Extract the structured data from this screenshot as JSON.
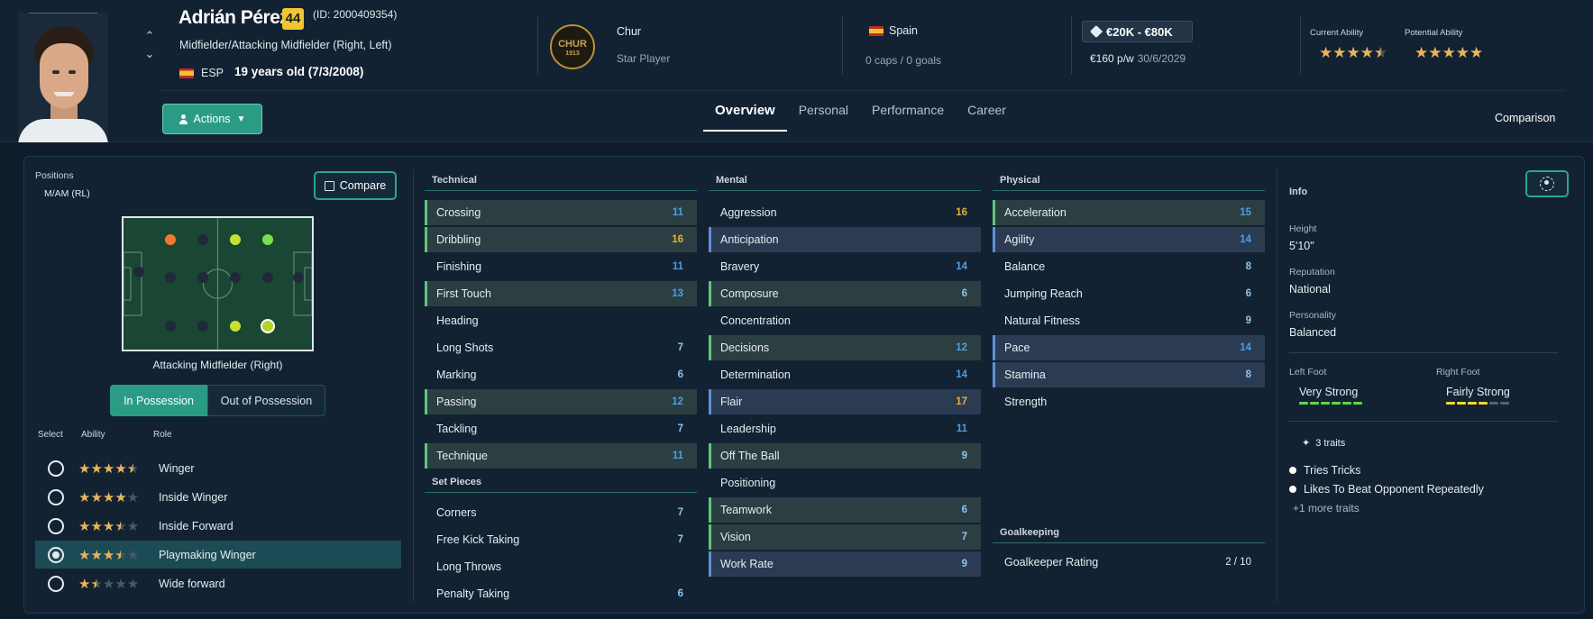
{
  "player": {
    "name": "Adrián Pérez",
    "ca_badge": "44",
    "id": "(ID: 2000409354)",
    "positions": "Midfielder/Attacking Midfielder (Right, Left)",
    "nationality_code": "ESP",
    "age": "19 years old (7/3/2008)"
  },
  "club": {
    "logo_text": "CHUR",
    "logo_year": "1913",
    "name": "Chur",
    "role": "Star Player"
  },
  "nation": {
    "name": "Spain",
    "caps": "0 caps / 0 goals"
  },
  "contract": {
    "value": "€20K - €80K",
    "wage": "€160 p/w",
    "expiry": "30/6/2029"
  },
  "ability": {
    "current_label": "Current Ability",
    "current_stars": 4.5,
    "potential_label": "Potential Ability",
    "potential_stars": 5
  },
  "actions_label": "Actions",
  "tabs": [
    {
      "label": "Overview",
      "active": true
    },
    {
      "label": "Personal",
      "active": false
    },
    {
      "label": "Performance",
      "active": false
    },
    {
      "label": "Career",
      "active": false
    }
  ],
  "comparison_label": "Comparison",
  "positions_panel": {
    "label": "Positions",
    "value": "M/AM (RL)",
    "compare_label": "Compare",
    "pitch_caption": "Attacking Midfielder (Right)",
    "in_possession": "In Possession",
    "out_of_possession": "Out of Possession",
    "head_select": "Select",
    "head_ability": "Ability",
    "head_role": "Role",
    "roles": [
      {
        "name": "Winger",
        "stars": 4.5,
        "selected": false
      },
      {
        "name": "Inside Winger",
        "stars": 4,
        "selected": false
      },
      {
        "name": "Inside Forward",
        "stars": 3.5,
        "selected": false
      },
      {
        "name": "Playmaking Winger",
        "stars": 3.5,
        "selected": true
      },
      {
        "name": "Wide forward",
        "stars": 1.5,
        "selected": false
      }
    ]
  },
  "technical": {
    "title": "Technical",
    "attrs": [
      {
        "name": "Crossing",
        "value": "11",
        "hl": "green",
        "color": "blue"
      },
      {
        "name": "Dribbling",
        "value": "16",
        "hl": "green",
        "color": "gold"
      },
      {
        "name": "Finishing",
        "value": "11",
        "hl": "",
        "color": "blue"
      },
      {
        "name": "First Touch",
        "value": "13",
        "hl": "green",
        "color": "blue"
      },
      {
        "name": "Heading",
        "value": "",
        "hl": "",
        "color": "blue"
      },
      {
        "name": "Long Shots",
        "value": "7",
        "hl": "",
        "color": "lblue"
      },
      {
        "name": "Marking",
        "value": "6",
        "hl": "",
        "color": "lblue"
      },
      {
        "name": "Passing",
        "value": "12",
        "hl": "green",
        "color": "blue"
      },
      {
        "name": "Tackling",
        "value": "7",
        "hl": "",
        "color": "lblue"
      },
      {
        "name": "Technique",
        "value": "11",
        "hl": "green",
        "color": "blue"
      }
    ]
  },
  "set_pieces": {
    "title": "Set Pieces",
    "attrs": [
      {
        "name": "Corners",
        "value": "7",
        "hl": "",
        "color": "lblue"
      },
      {
        "name": "Free Kick Taking",
        "value": "7",
        "hl": "",
        "color": "lblue"
      },
      {
        "name": "Long Throws",
        "value": "",
        "hl": "",
        "color": "lblue"
      },
      {
        "name": "Penalty Taking",
        "value": "6",
        "hl": "",
        "color": "lblue"
      }
    ]
  },
  "mental": {
    "title": "Mental",
    "attrs": [
      {
        "name": "Aggression",
        "value": "16",
        "hl": "",
        "color": "gold"
      },
      {
        "name": "Anticipation",
        "value": "",
        "hl": "blue",
        "color": "blue"
      },
      {
        "name": "Bravery",
        "value": "14",
        "hl": "",
        "color": "blue"
      },
      {
        "name": "Composure",
        "value": "6",
        "hl": "green",
        "color": "lblue"
      },
      {
        "name": "Concentration",
        "value": "",
        "hl": "",
        "color": "blue"
      },
      {
        "name": "Decisions",
        "value": "12",
        "hl": "green",
        "color": "blue"
      },
      {
        "name": "Determination",
        "value": "14",
        "hl": "",
        "color": "blue"
      },
      {
        "name": "Flair",
        "value": "17",
        "hl": "blue",
        "color": "gold"
      },
      {
        "name": "Leadership",
        "value": "11",
        "hl": "",
        "color": "blue"
      },
      {
        "name": "Off The Ball",
        "value": "9",
        "hl": "green",
        "color": "lblue"
      },
      {
        "name": "Positioning",
        "value": "",
        "hl": "",
        "color": "blue"
      },
      {
        "name": "Teamwork",
        "value": "6",
        "hl": "green",
        "color": "lblue"
      },
      {
        "name": "Vision",
        "value": "7",
        "hl": "green",
        "color": "lblue"
      },
      {
        "name": "Work Rate",
        "value": "9",
        "hl": "blue",
        "color": "lblue"
      }
    ]
  },
  "physical": {
    "title": "Physical",
    "attrs": [
      {
        "name": "Acceleration",
        "value": "15",
        "hl": "green",
        "color": "blue"
      },
      {
        "name": "Agility",
        "value": "14",
        "hl": "blue",
        "color": "blue"
      },
      {
        "name": "Balance",
        "value": "8",
        "hl": "",
        "color": "lblue"
      },
      {
        "name": "Jumping Reach",
        "value": "6",
        "hl": "",
        "color": "lblue"
      },
      {
        "name": "Natural Fitness",
        "value": "9",
        "hl": "",
        "color": "lblue"
      },
      {
        "name": "Pace",
        "value": "14",
        "hl": "blue",
        "color": "blue"
      },
      {
        "name": "Stamina",
        "value": "8",
        "hl": "blue",
        "color": "lblue"
      },
      {
        "name": "Strength",
        "value": "",
        "hl": "",
        "color": "lblue"
      }
    ]
  },
  "goalkeeping": {
    "title": "Goalkeeping",
    "attrs": [
      {
        "name": "Goalkeeper Rating",
        "value": "2 / 10",
        "hl": "",
        "color": "white"
      }
    ]
  },
  "info": {
    "title": "Info",
    "height_label": "Height",
    "height": "5'10\"",
    "reputation_label": "Reputation",
    "reputation": "National",
    "personality_label": "Personality",
    "personality": "Balanced",
    "left_foot_label": "Left Foot",
    "left_foot": "Very Strong",
    "left_foot_level": 6,
    "right_foot_label": "Right Foot",
    "right_foot": "Fairly Strong",
    "right_foot_level": 4,
    "traits_count": "3 traits",
    "traits": [
      "Tries Tricks",
      "Likes To Beat Opponent Repeatedly"
    ],
    "more_traits": "+1 more traits"
  },
  "colors": {
    "accent": "#2a9c86",
    "gold": "#e8b030",
    "blue": "#4d9de6",
    "star": "#e8b65a",
    "foot_left": "#5fd64a",
    "foot_right": "#f0d830"
  }
}
